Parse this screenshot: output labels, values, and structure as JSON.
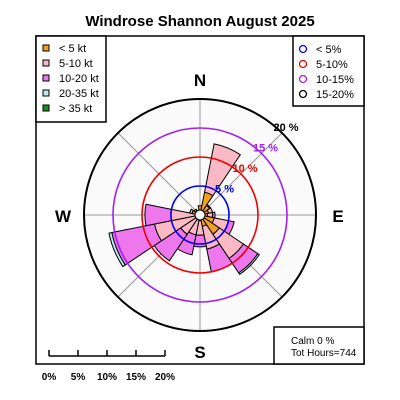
{
  "chart_data": {
    "type": "windrose",
    "title": "Windrose  Shannon August 2025",
    "cardinals": {
      "n": "N",
      "e": "E",
      "s": "S",
      "w": "W"
    },
    "directions": [
      0,
      22.5,
      45,
      67.5,
      90,
      112.5,
      135,
      157.5,
      180,
      202.5,
      225,
      247.5,
      270,
      292.5,
      315,
      337.5
    ],
    "speed_classes": [
      {
        "label": "< 5  kt",
        "color": "#f2a01e"
      },
      {
        "label": "5-10 kt",
        "color": "#fbb9c6"
      },
      {
        "label": "10-20 kt",
        "color": "#ee77ee"
      },
      {
        "label": "20-35 kt",
        "color": "#bfeaf0"
      },
      {
        "label": "> 35 kt",
        "color": "#228b22"
      }
    ],
    "cumulative_percent": [
      [
        1.6,
        1.6,
        1.6,
        1.6,
        1.6
      ],
      [
        4.0,
        12.5,
        12.5,
        12.5,
        12.5
      ],
      [
        2.0,
        2.2,
        2.2,
        2.2,
        2.2
      ],
      [
        1.5,
        2.2,
        2.2,
        2.2,
        2.2
      ],
      [
        1.3,
        2.2,
        2.6,
        2.6,
        2.6
      ],
      [
        2.5,
        5.0,
        6.0,
        6.0,
        6.0
      ],
      [
        4.0,
        9.0,
        12.0,
        12.3,
        12.3
      ],
      [
        2.0,
        6.0,
        10.0,
        10.0,
        10.0
      ],
      [
        1.0,
        3.5,
        5.5,
        5.5,
        5.5
      ],
      [
        0.9,
        3.5,
        7.0,
        7.0,
        7.0
      ],
      [
        0.8,
        4.0,
        9.5,
        9.5,
        9.5
      ],
      [
        0.8,
        8.0,
        15.5,
        16.0,
        16.0
      ],
      [
        0.8,
        5.0,
        9.5,
        9.5,
        9.5
      ],
      [
        1.4,
        1.8,
        1.8,
        1.8,
        1.8
      ],
      [
        0.9,
        1.2,
        1.2,
        1.2,
        1.2
      ],
      [
        0.6,
        0.6,
        0.6,
        0.6,
        0.6
      ]
    ],
    "rings": [
      {
        "value": 5,
        "label": "5 %",
        "color": "#0000ee"
      },
      {
        "value": 10,
        "label": "10 %",
        "color": "#ee0000"
      },
      {
        "value": 15,
        "label": "15 %",
        "color": "#a020f0"
      },
      {
        "value": 20,
        "label": "20 %",
        "color": "#000000"
      }
    ],
    "ring_legend": [
      {
        "label": "< 5%",
        "color": "#0000ee"
      },
      {
        "label": "5-10%",
        "color": "#ee0000"
      },
      {
        "label": "10-15%",
        "color": "#a020f0"
      },
      {
        "label": "15-20%",
        "color": "#000000"
      }
    ],
    "scale_ticks": [
      0,
      5,
      10,
      15,
      20
    ],
    "scale_labels": [
      "0%",
      "5%",
      "10%",
      "15%",
      "20%"
    ],
    "calm_text": "Calm 0 %",
    "hours_text": "Tot Hours=744"
  }
}
